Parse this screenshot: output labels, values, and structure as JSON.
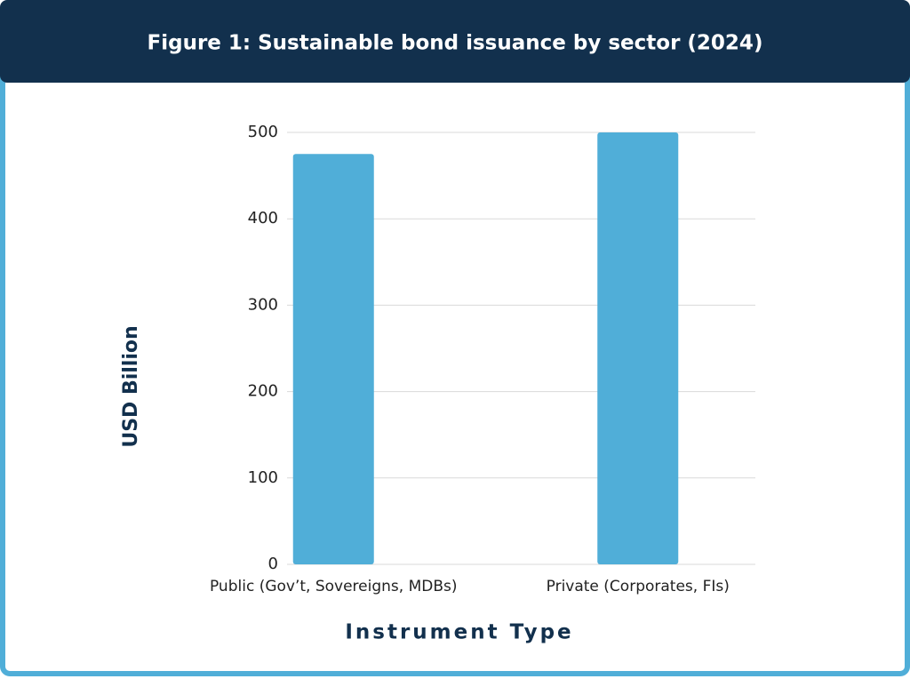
{
  "chart_data": {
    "type": "bar",
    "title": "Figure 1: Sustainable bond issuance by sector (2024)",
    "categories": [
      "Public (Gov’t, Sovereigns, MDBs)",
      "Private (Corporates, FIs)"
    ],
    "values": [
      475,
      500
    ],
    "color": "#50aed8",
    "ylim": [
      0,
      500
    ],
    "yticks": [
      0,
      100,
      200,
      300,
      400,
      500
    ],
    "grid": true,
    "x_label": "Instrument Type",
    "y_label": "USD Billion"
  }
}
